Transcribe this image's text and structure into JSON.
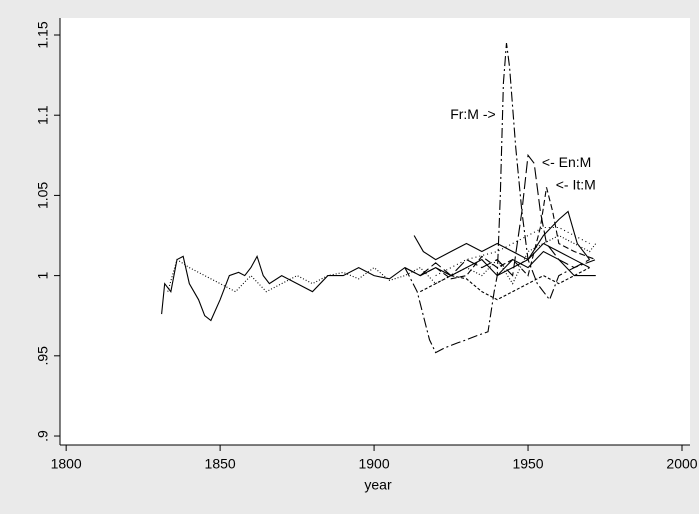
{
  "chart_data": {
    "type": "line",
    "xlabel": "year",
    "xlim": [
      1798,
      2002.6
    ],
    "xticks": [
      1800,
      1850,
      1900,
      1950,
      2000
    ],
    "ylim": [
      0.8944,
      1.1606
    ],
    "yticks": [
      {
        "value": 0.9,
        "label": ".9"
      },
      {
        "value": 0.95,
        "label": ".95"
      },
      1,
      1.05,
      1.1,
      1.15
    ],
    "grid": false,
    "annotations": [
      {
        "text": "Fr:M ->",
        "x": 1939.5,
        "y": 1.1,
        "placement": "left"
      },
      {
        "text": "<- En:M",
        "x": 1954.5,
        "y": 1.07,
        "placement": "right"
      },
      {
        "text": "<- It:M",
        "x": 1959,
        "y": 1.056,
        "placement": "right"
      }
    ],
    "series": [
      {
        "color": "#000000",
        "dash": "none",
        "x": [
          1831,
          1832,
          1834,
          1836,
          1838,
          1840,
          1843,
          1845,
          1847,
          1850,
          1853,
          1856,
          1858,
          1860,
          1862,
          1864,
          1866,
          1870,
          1875,
          1880,
          1885,
          1890,
          1895,
          1900,
          1905,
          1910,
          1915,
          1920,
          1925,
          1930,
          1935,
          1940,
          1945,
          1950,
          1955,
          1960,
          1965,
          1970
        ],
        "values": [
          0.976,
          0.995,
          0.99,
          1.01,
          1.012,
          0.995,
          0.985,
          0.975,
          0.972,
          0.985,
          1.0,
          1.002,
          1.0,
          1.005,
          1.012,
          1.0,
          0.995,
          1.0,
          0.995,
          0.99,
          1.0,
          1.0,
          1.005,
          1.0,
          0.998,
          1.005,
          1.0,
          1.005,
          1.0,
          1.005,
          1.01,
          1.0,
          1.005,
          1.01,
          1.02,
          1.015,
          1.01,
          1.005
        ]
      },
      {
        "color": "#000000",
        "dash": "1 2",
        "x": [
          1833,
          1836,
          1840,
          1845,
          1850,
          1855,
          1860,
          1865,
          1870,
          1875,
          1880,
          1885,
          1890,
          1895,
          1900,
          1905,
          1910,
          1915,
          1920,
          1925,
          1930,
          1935,
          1940,
          1945,
          1950,
          1955,
          1960,
          1965,
          1970,
          1972
        ],
        "values": [
          0.99,
          1.01,
          1.005,
          1.0,
          0.995,
          0.99,
          1.0,
          0.99,
          0.995,
          1.0,
          0.995,
          1.0,
          1.002,
          0.998,
          1.005,
          0.997,
          1.0,
          1.005,
          0.995,
          1.0,
          1.005,
          1.0,
          1.01,
          0.995,
          1.015,
          1.02,
          1.025,
          1.02,
          1.015,
          1.02
        ]
      },
      {
        "color": "#000000",
        "dash": "10 3 2 3",
        "x": [
          1910,
          1914,
          1918,
          1920,
          1923,
          1927,
          1930,
          1934,
          1937,
          1939,
          1940,
          1941,
          1942,
          1943,
          1944,
          1946,
          1948,
          1950,
          1953,
          1955,
          1957,
          1960,
          1965,
          1972
        ],
        "values": [
          1.005,
          0.99,
          0.96,
          0.952,
          0.955,
          0.958,
          0.96,
          0.963,
          0.965,
          0.99,
          1.0,
          1.05,
          1.12,
          1.145,
          1.13,
          1.08,
          1.04,
          1.01,
          0.995,
          0.99,
          0.985,
          1.0,
          1.005,
          1.01
        ]
      },
      {
        "color": "#000000",
        "dash": "12 4",
        "x": [
          1910,
          1915,
          1920,
          1925,
          1930,
          1935,
          1940,
          1945,
          1948,
          1950,
          1952,
          1954,
          1956,
          1960,
          1965,
          1970
        ],
        "values": [
          1.005,
          1.0,
          1.008,
          1.0,
          1.01,
          1.005,
          1.01,
          1.0,
          1.04,
          1.075,
          1.07,
          1.04,
          1.02,
          1.01,
          1.005,
          1.01
        ]
      },
      {
        "color": "#000000",
        "dash": "6 3",
        "x": [
          1915,
          1920,
          1925,
          1930,
          1935,
          1940,
          1945,
          1950,
          1954,
          1956,
          1958,
          1960,
          1965,
          1972
        ],
        "values": [
          1.0,
          1.005,
          0.998,
          1.0,
          1.012,
          1.005,
          1.01,
          1.0,
          1.03,
          1.055,
          1.04,
          1.02,
          1.015,
          1.01
        ]
      },
      {
        "color": "#000000",
        "dash": "none",
        "x": [
          1913,
          1916,
          1920,
          1925,
          1930,
          1935,
          1940,
          1945,
          1950,
          1955,
          1960,
          1963,
          1966,
          1970
        ],
        "values": [
          1.025,
          1.015,
          1.01,
          1.015,
          1.02,
          1.015,
          1.02,
          1.015,
          1.01,
          1.025,
          1.035,
          1.04,
          1.02,
          1.01
        ]
      },
      {
        "color": "#000000",
        "dash": "3 2",
        "x": [
          1915,
          1920,
          1925,
          1930,
          1935,
          1940,
          1945,
          1950,
          1955,
          1960,
          1965,
          1970
        ],
        "values": [
          0.99,
          0.995,
          1.0,
          0.998,
          0.99,
          0.985,
          0.99,
          0.995,
          1.0,
          0.995,
          1.0,
          1.005
        ]
      },
      {
        "color": "#000000",
        "dash": "1 3",
        "x": [
          1920,
          1930,
          1940,
          1945,
          1950,
          1955,
          1960,
          1965,
          1970
        ],
        "values": [
          1.0,
          1.01,
          1.015,
          1.02,
          1.025,
          1.03,
          1.03,
          1.025,
          1.02
        ]
      },
      {
        "color": "#000000",
        "dash": "none",
        "x": [
          1940,
          1945,
          1950,
          1955,
          1960,
          1965,
          1972
        ],
        "values": [
          1.0,
          1.01,
          1.005,
          1.015,
          1.01,
          1.0,
          1.0
        ]
      }
    ]
  }
}
